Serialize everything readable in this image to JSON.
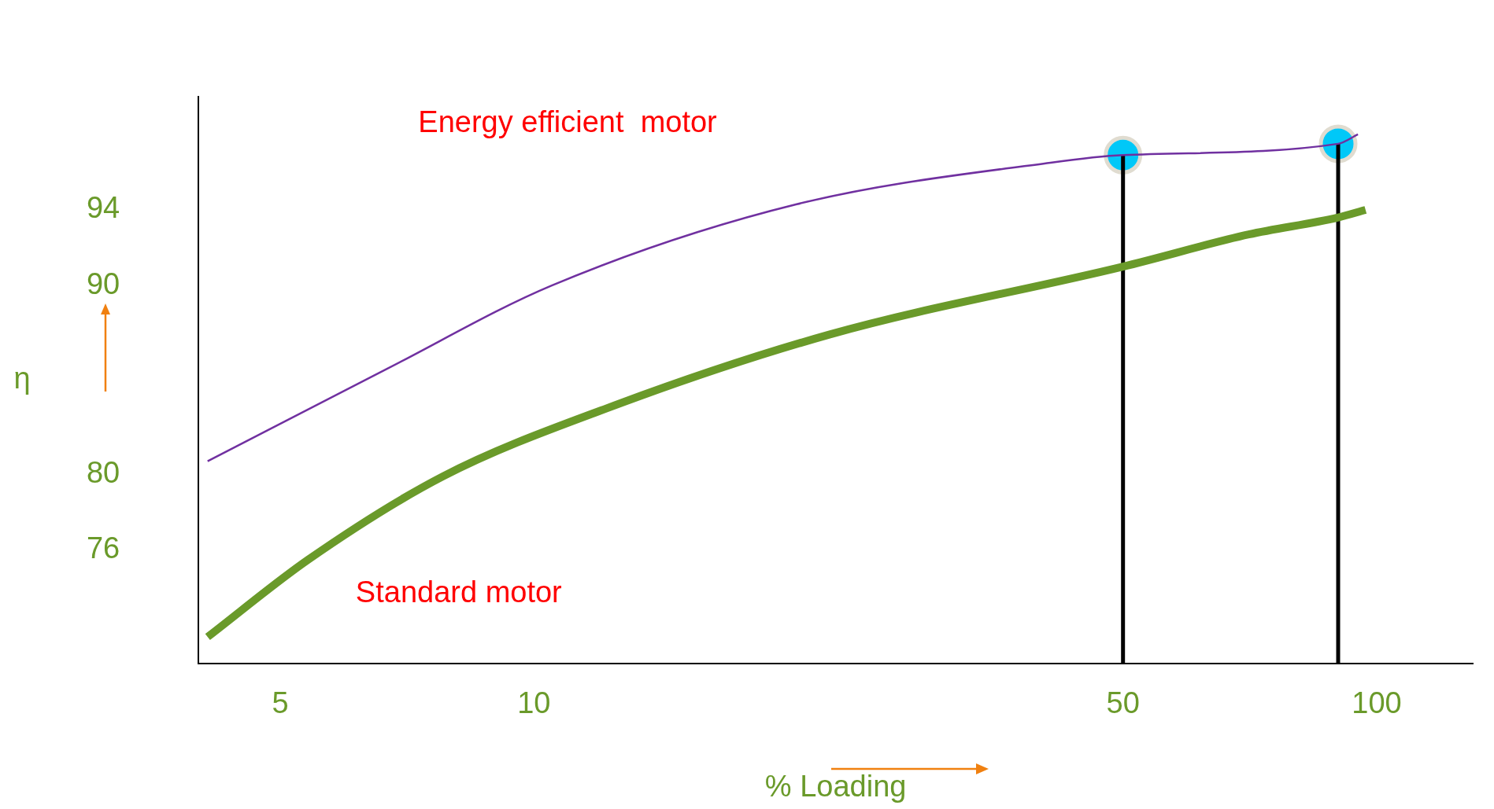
{
  "chart_data": {
    "type": "line",
    "xlabel": "% Loading",
    "ylabel": "η",
    "log": "x",
    "xlim": [
      4,
      130
    ],
    "xticks": [
      5,
      10,
      50,
      100
    ],
    "ylim": [
      70,
      100
    ],
    "yticks": [
      76,
      80,
      90,
      94
    ],
    "grid": false,
    "legend": false,
    "marker": "none",
    "line_style": "solid",
    "series": [
      {
        "name": "Energy efficient  motor",
        "color": "#7030a0",
        "x": [
          4.1,
          6.7,
          10.5,
          20.5,
          41,
          50,
          90,
          95
        ],
        "values": [
          80.7,
          85.6,
          90.0,
          94.3,
          96.5,
          96.9,
          97.5,
          98.0
        ]
      },
      {
        "name": "Standard motor",
        "color": "#6a9a2a",
        "x": [
          4.1,
          5.4,
          7.8,
          12.2,
          22.4,
          50,
          70.5,
          90,
          97
        ],
        "values": [
          71.4,
          75.5,
          79.9,
          83.5,
          87.4,
          91.0,
          92.7,
          93.6,
          94.0
        ]
      },
      {
        "color": "#000000",
        "x": [
          50,
          50
        ],
        "values": [
          70,
          96.9
        ]
      },
      {
        "color": "#000000",
        "x": [
          90,
          90
        ],
        "values": [
          70,
          97.5
        ]
      },
      {
        "type": "scatter",
        "marker": "circle",
        "color": "#00c8f8",
        "x": [
          50,
          90
        ],
        "values": [
          96.9,
          97.5
        ]
      }
    ]
  }
}
